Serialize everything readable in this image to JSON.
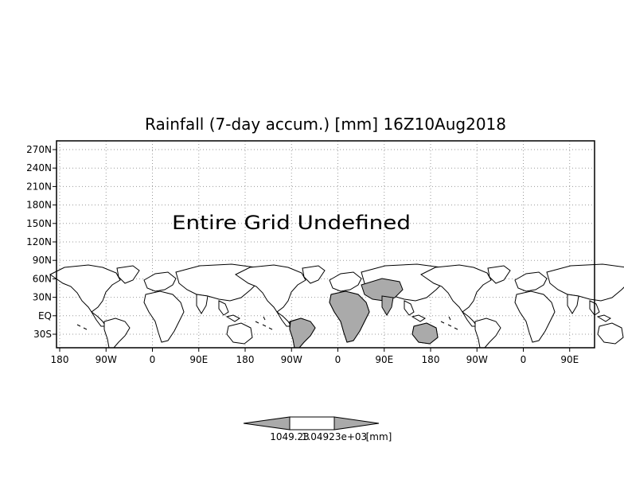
{
  "title": "Rainfall (7-day accum.) [mm] 16Z10Aug2018",
  "notice": "Entire Grid Undefined",
  "lat_labels": [
    "270N",
    "240N",
    "210N",
    "180N",
    "150N",
    "120N",
    "90N",
    "60N",
    "30N",
    "EQ",
    "30S"
  ],
  "lon_labels": [
    "180",
    "90W",
    "0",
    "90E",
    "180",
    "90W",
    "0",
    "90E",
    "180",
    "90W",
    "0",
    "90E"
  ],
  "colorbar": {
    "left_value": "1049.23",
    "right_value": "1.04923e+03",
    "unit": "[mm]"
  },
  "colors": {
    "land_fill": "#aaaaaa",
    "outline": "#000000",
    "grid": "#999999"
  }
}
